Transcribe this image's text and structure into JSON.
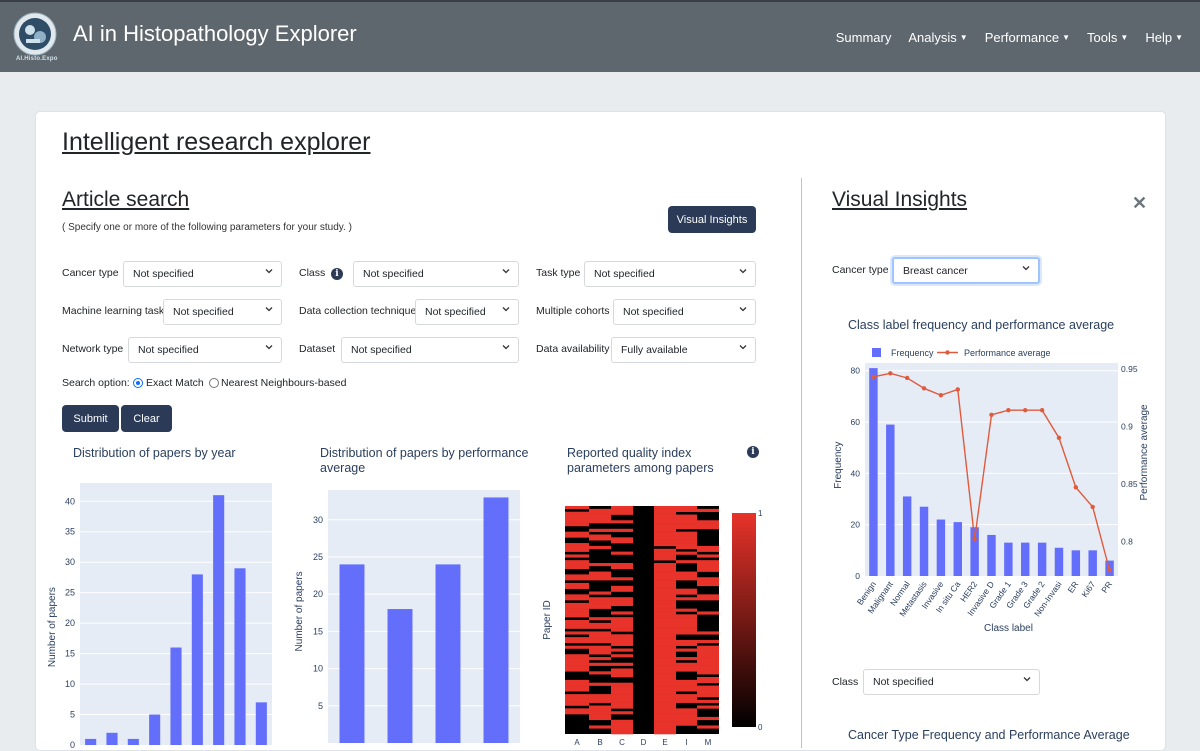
{
  "app": {
    "title": "AI in Histopathology Explorer",
    "logo_caption": "AI.Histo.Expo"
  },
  "nav": [
    "Summary",
    "Analysis",
    "Performance",
    "Tools",
    "Help"
  ],
  "page_title": "Intelligent research explorer",
  "search": {
    "title": "Article search",
    "hint": "( Specify one or more of the following parameters for your study. )",
    "visual_insights_btn": "Visual Insights",
    "fields": {
      "cancer_type": {
        "label": "Cancer type",
        "value": "Not specified"
      },
      "class": {
        "label": "Class",
        "value": "Not specified"
      },
      "task_type": {
        "label": "Task type",
        "value": "Not specified"
      },
      "ml_task": {
        "label": "Machine learning task",
        "value": "Not specified"
      },
      "data_collection": {
        "label": "Data collection technique",
        "value": "Not specified"
      },
      "multiple_cohorts": {
        "label": "Multiple cohorts",
        "value": "Not specified"
      },
      "network_type": {
        "label": "Network type",
        "value": "Not specified"
      },
      "dataset": {
        "label": "Dataset",
        "value": "Not specified"
      },
      "data_availability": {
        "label": "Data availability",
        "value": "Fully available"
      }
    },
    "search_option": {
      "label": "Search option:",
      "options": [
        "Exact Match",
        "Nearest Neighbours-based"
      ],
      "selected": "Exact Match"
    },
    "submit": "Submit",
    "clear": "Clear"
  },
  "insights": {
    "title": "Visual Insights",
    "cancer_type": {
      "label": "Cancer type",
      "value": "Breast cancer"
    },
    "class": {
      "label": "Class",
      "value": "Not specified"
    },
    "next_chart_title": "Cancer Type Frequency and Performance Average"
  },
  "colors": {
    "bar": "#636efa",
    "line": "#e05b3e",
    "plot_bg": "#e5ecf6",
    "heat_low": "#000000",
    "heat_high": "#e8332a"
  },
  "chart_data": [
    {
      "type": "bar",
      "title": "Distribution of papers by year",
      "xlabel": "",
      "ylabel": "Number of papers",
      "values": [
        1,
        2,
        1,
        5,
        16,
        28,
        41,
        29,
        7
      ],
      "ylim": [
        0,
        43
      ],
      "yticks": [
        0,
        5,
        10,
        15,
        20,
        25,
        30,
        35,
        40
      ]
    },
    {
      "type": "bar",
      "title": "Distribution of papers by performance average",
      "xlabel": "",
      "ylabel": "Number of papers",
      "values": [
        24,
        18,
        24,
        33
      ],
      "ylim": [
        0,
        34
      ],
      "yticks": [
        5,
        10,
        15,
        20,
        25,
        30
      ]
    },
    {
      "type": "heatmap",
      "title": "Reported quality index parameters among papers",
      "ylabel": "Paper ID",
      "x_ticks": [
        "A",
        "B",
        "C",
        "D",
        "E",
        "I",
        "M"
      ],
      "colorbar": {
        "min": "0",
        "max": "1"
      }
    },
    {
      "type": "bar",
      "title": "Class label frequency and performance average",
      "xlabel": "Class label",
      "ylabel": "Frequency",
      "y2label": "Performance average",
      "legend": "top",
      "categories": [
        "Benign",
        "Malignant",
        "Normal",
        "Metastasis",
        "Invasive",
        "In situ Ca",
        "HER2",
        "Invasive D",
        "Grade 1",
        "Grade 3",
        "Grade 2",
        "Non-Invasi",
        "ER",
        "Ki67",
        "PR"
      ],
      "series": [
        {
          "name": "Frequency",
          "values": [
            81,
            59,
            31,
            27,
            22,
            21,
            19,
            16,
            13,
            13,
            13,
            11,
            10,
            10,
            6
          ]
        },
        {
          "name": "Performance average",
          "values": [
            0.943,
            0.946,
            0.942,
            0.933,
            0.927,
            0.932,
            0.802,
            0.91,
            0.914,
            0.914,
            0.914,
            0.89,
            0.847,
            0.83,
            0.775
          ]
        }
      ],
      "ylim": [
        0,
        83
      ],
      "yticks": [
        0,
        20,
        40,
        60,
        80
      ],
      "y2lim": [
        0.77,
        0.955
      ],
      "y2ticks": [
        0.8,
        0.85,
        0.9,
        0.95
      ]
    }
  ]
}
